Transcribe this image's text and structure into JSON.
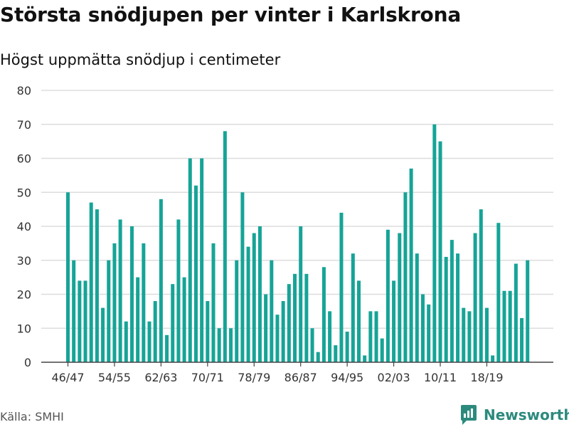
{
  "header": {
    "title": "Största snödjupen per vinter i Karlskrona",
    "subtitle": "Högst uppmätta snödjup i centimeter"
  },
  "footer": {
    "source": "Källa: SMHI",
    "brand": "Newsworthy",
    "brand_color": "#2c8a7d"
  },
  "chart_data": {
    "type": "bar",
    "title": "Största snödjupen per vinter i Karlskrona",
    "subtitle": "Högst uppmätta snödjup i centimeter",
    "xlabel": "",
    "ylabel": "",
    "ylim": [
      0,
      80
    ],
    "yticks": [
      0,
      10,
      20,
      30,
      40,
      50,
      60,
      70,
      80
    ],
    "grid": true,
    "legend": "none",
    "bar_color": "#16a497",
    "categories": [
      "46/47",
      "47/48",
      "48/49",
      "49/50",
      "50/51",
      "51/52",
      "52/53",
      "53/54",
      "54/55",
      "55/56",
      "56/57",
      "57/58",
      "58/59",
      "59/60",
      "60/61",
      "61/62",
      "62/63",
      "63/64",
      "64/65",
      "65/66",
      "66/67",
      "67/68",
      "68/69",
      "69/70",
      "70/71",
      "71/72",
      "72/73",
      "73/74",
      "74/75",
      "75/76",
      "76/77",
      "77/78",
      "78/79",
      "79/80",
      "80/81",
      "81/82",
      "82/83",
      "83/84",
      "84/85",
      "85/86",
      "86/87",
      "87/88",
      "88/89",
      "89/90",
      "90/91",
      "91/92",
      "92/93",
      "93/94",
      "94/95",
      "95/96",
      "96/97",
      "97/98",
      "98/99",
      "99/00",
      "00/01",
      "01/02",
      "02/03",
      "03/04",
      "04/05",
      "05/06",
      "06/07",
      "07/08",
      "08/09",
      "09/10",
      "10/11",
      "11/12",
      "12/13",
      "13/14",
      "14/15",
      "15/16",
      "16/17",
      "17/18",
      "18/19",
      "19/20",
      "20/21",
      "21/22",
      "22/23",
      "23/24",
      "24/25",
      "25/26"
    ],
    "tick_labels": [
      "46/47",
      "54/55",
      "62/63",
      "70/71",
      "78/79",
      "86/87",
      "94/95",
      "02/03",
      "10/11",
      "18/19"
    ],
    "values": [
      50,
      30,
      24,
      24,
      47,
      45,
      16,
      30,
      35,
      42,
      12,
      40,
      25,
      35,
      12,
      18,
      48,
      8,
      23,
      42,
      25,
      60,
      52,
      60,
      18,
      35,
      10,
      68,
      10,
      30,
      50,
      34,
      38,
      40,
      20,
      30,
      14,
      18,
      23,
      26,
      40,
      26,
      10,
      3,
      28,
      15,
      5,
      44,
      9,
      32,
      24,
      2,
      15,
      15,
      7,
      39,
      24,
      38,
      50,
      57,
      32,
      20,
      17,
      70,
      65,
      31,
      36,
      32,
      16,
      15,
      38,
      45,
      16,
      2,
      41,
      21,
      21,
      29,
      13,
      30
    ]
  }
}
